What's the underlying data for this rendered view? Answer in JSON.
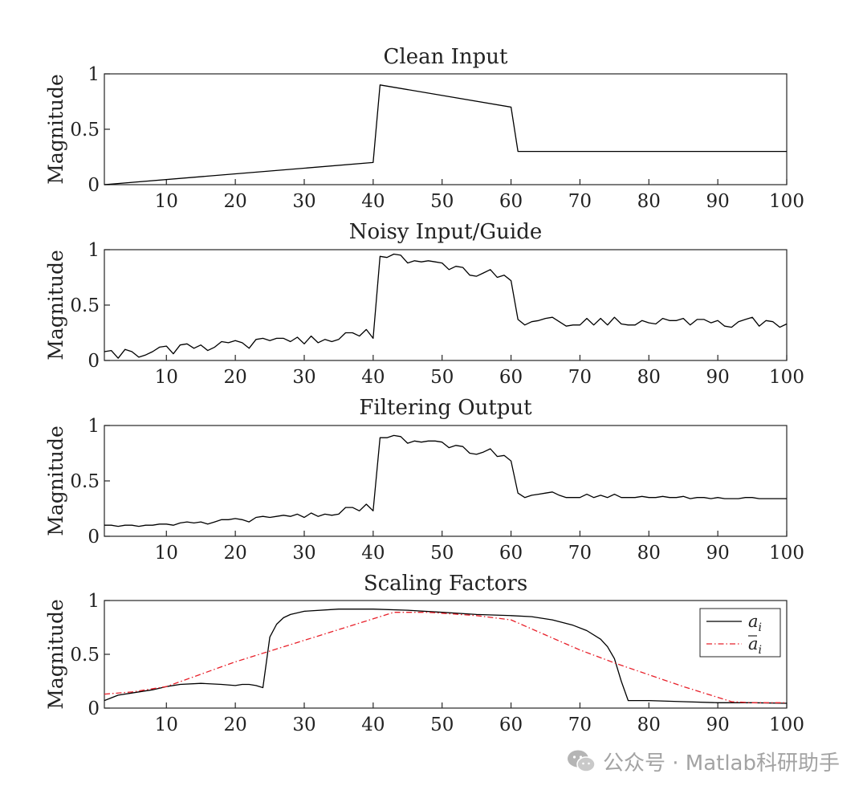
{
  "figure": {
    "watermark": "公众号 · Matlab科研助手"
  },
  "colors": {
    "axes": "#262626",
    "series_primary": "#000000",
    "series_secondary": "#e8202a",
    "watermark": "#a3a3a3"
  },
  "chart_data": [
    {
      "type": "line",
      "title": "Clean Input",
      "xlabel": "",
      "ylabel": "Magnitude",
      "xlim": [
        1,
        100
      ],
      "ylim": [
        0,
        1
      ],
      "xticks": [
        10,
        20,
        30,
        40,
        50,
        60,
        70,
        80,
        90,
        100
      ],
      "yticks": [
        0,
        0.5,
        1
      ],
      "ytick_labels": [
        "0",
        "0.5",
        "1"
      ],
      "grid": false,
      "series": [
        {
          "name": "clean input",
          "x": [
            1,
            40,
            41,
            60,
            61,
            100
          ],
          "y": [
            0.0,
            0.2,
            0.9,
            0.7,
            0.3,
            0.3
          ]
        }
      ]
    },
    {
      "type": "line",
      "title": "Noisy Input/Guide",
      "xlabel": "",
      "ylabel": "Magnitude",
      "xlim": [
        1,
        100
      ],
      "ylim": [
        0,
        1
      ],
      "xticks": [
        10,
        20,
        30,
        40,
        50,
        60,
        70,
        80,
        90,
        100
      ],
      "yticks": [
        0,
        0.5,
        1
      ],
      "ytick_labels": [
        "0",
        "0.5",
        "1"
      ],
      "grid": false,
      "series": [
        {
          "name": "noisy input",
          "x": [
            1,
            2,
            3,
            4,
            5,
            6,
            7,
            8,
            9,
            10,
            11,
            12,
            13,
            14,
            15,
            16,
            17,
            18,
            19,
            20,
            21,
            22,
            23,
            24,
            25,
            26,
            27,
            28,
            29,
            30,
            31,
            32,
            33,
            34,
            35,
            36,
            37,
            38,
            39,
            40,
            41,
            42,
            43,
            44,
            45,
            46,
            47,
            48,
            49,
            50,
            51,
            52,
            53,
            54,
            55,
            56,
            57,
            58,
            59,
            60,
            61,
            62,
            63,
            64,
            65,
            66,
            67,
            68,
            69,
            70,
            71,
            72,
            73,
            74,
            75,
            76,
            77,
            78,
            79,
            80,
            81,
            82,
            83,
            84,
            85,
            86,
            87,
            88,
            89,
            90,
            91,
            92,
            93,
            94,
            95,
            96,
            97,
            98,
            99,
            100
          ],
          "y": [
            0.08,
            0.09,
            0.02,
            0.1,
            0.08,
            0.03,
            0.05,
            0.08,
            0.12,
            0.13,
            0.06,
            0.14,
            0.15,
            0.11,
            0.14,
            0.09,
            0.12,
            0.17,
            0.16,
            0.18,
            0.16,
            0.11,
            0.19,
            0.2,
            0.18,
            0.2,
            0.2,
            0.17,
            0.21,
            0.15,
            0.22,
            0.16,
            0.19,
            0.17,
            0.19,
            0.25,
            0.25,
            0.22,
            0.28,
            0.2,
            0.94,
            0.93,
            0.96,
            0.95,
            0.88,
            0.9,
            0.89,
            0.9,
            0.89,
            0.88,
            0.82,
            0.85,
            0.84,
            0.77,
            0.76,
            0.79,
            0.82,
            0.75,
            0.77,
            0.72,
            0.37,
            0.32,
            0.35,
            0.36,
            0.38,
            0.39,
            0.35,
            0.31,
            0.32,
            0.32,
            0.38,
            0.32,
            0.38,
            0.32,
            0.39,
            0.33,
            0.32,
            0.32,
            0.36,
            0.34,
            0.33,
            0.38,
            0.36,
            0.36,
            0.38,
            0.32,
            0.37,
            0.37,
            0.34,
            0.36,
            0.31,
            0.3,
            0.35,
            0.37,
            0.39,
            0.31,
            0.36,
            0.35,
            0.3,
            0.33
          ]
        }
      ]
    },
    {
      "type": "line",
      "title": "Filtering Output",
      "xlabel": "",
      "ylabel": "Magnitude",
      "xlim": [
        1,
        100
      ],
      "ylim": [
        0,
        1
      ],
      "xticks": [
        10,
        20,
        30,
        40,
        50,
        60,
        70,
        80,
        90,
        100
      ],
      "yticks": [
        0,
        0.5,
        1
      ],
      "ytick_labels": [
        "0",
        "0.5",
        "1"
      ],
      "grid": false,
      "series": [
        {
          "name": "filtering output",
          "x": [
            1,
            2,
            3,
            4,
            5,
            6,
            7,
            8,
            9,
            10,
            11,
            12,
            13,
            14,
            15,
            16,
            17,
            18,
            19,
            20,
            21,
            22,
            23,
            24,
            25,
            26,
            27,
            28,
            29,
            30,
            31,
            32,
            33,
            34,
            35,
            36,
            37,
            38,
            39,
            40,
            41,
            42,
            43,
            44,
            45,
            46,
            47,
            48,
            49,
            50,
            51,
            52,
            53,
            54,
            55,
            56,
            57,
            58,
            59,
            60,
            61,
            62,
            63,
            64,
            65,
            66,
            67,
            68,
            69,
            70,
            71,
            72,
            73,
            74,
            75,
            76,
            77,
            78,
            79,
            80,
            81,
            82,
            83,
            84,
            85,
            86,
            87,
            88,
            89,
            90,
            91,
            92,
            93,
            94,
            95,
            96,
            97,
            98,
            99,
            100
          ],
          "y": [
            0.1,
            0.1,
            0.09,
            0.1,
            0.1,
            0.09,
            0.1,
            0.1,
            0.11,
            0.11,
            0.1,
            0.12,
            0.13,
            0.12,
            0.13,
            0.11,
            0.13,
            0.15,
            0.15,
            0.16,
            0.15,
            0.13,
            0.17,
            0.18,
            0.17,
            0.18,
            0.19,
            0.18,
            0.2,
            0.17,
            0.21,
            0.18,
            0.2,
            0.19,
            0.2,
            0.26,
            0.26,
            0.23,
            0.29,
            0.23,
            0.89,
            0.89,
            0.91,
            0.9,
            0.84,
            0.86,
            0.85,
            0.86,
            0.86,
            0.85,
            0.8,
            0.82,
            0.81,
            0.75,
            0.74,
            0.76,
            0.79,
            0.72,
            0.73,
            0.68,
            0.39,
            0.35,
            0.37,
            0.38,
            0.39,
            0.4,
            0.37,
            0.35,
            0.35,
            0.35,
            0.38,
            0.35,
            0.37,
            0.35,
            0.38,
            0.35,
            0.35,
            0.35,
            0.36,
            0.35,
            0.35,
            0.36,
            0.35,
            0.35,
            0.36,
            0.34,
            0.35,
            0.35,
            0.34,
            0.35,
            0.34,
            0.34,
            0.34,
            0.35,
            0.35,
            0.34,
            0.34,
            0.34,
            0.34,
            0.34
          ]
        }
      ]
    },
    {
      "type": "line",
      "title": "Scaling Factors",
      "xlabel": "",
      "ylabel": "Magnitude",
      "xlim": [
        1,
        100
      ],
      "ylim": [
        0,
        1
      ],
      "xticks": [
        10,
        20,
        30,
        40,
        50,
        60,
        70,
        80,
        90,
        100
      ],
      "yticks": [
        0,
        0.5,
        1
      ],
      "ytick_labels": [
        "0",
        "0.5",
        "1"
      ],
      "grid": false,
      "legend": "top-right",
      "series": [
        {
          "name": "a_i",
          "label_base": "a",
          "label_sub": "i",
          "label_bar": false,
          "style": "solid",
          "x": [
            1,
            3,
            5,
            8,
            10,
            12,
            15,
            18,
            20,
            21,
            22,
            23,
            24,
            25,
            26,
            27,
            28,
            30,
            35,
            40,
            45,
            50,
            55,
            60,
            63,
            66,
            69,
            71,
            73,
            74,
            75,
            76,
            77,
            80,
            85,
            90,
            95,
            100
          ],
          "y": [
            0.07,
            0.12,
            0.14,
            0.17,
            0.2,
            0.22,
            0.23,
            0.22,
            0.21,
            0.22,
            0.22,
            0.21,
            0.19,
            0.66,
            0.78,
            0.84,
            0.87,
            0.9,
            0.92,
            0.92,
            0.91,
            0.89,
            0.87,
            0.86,
            0.85,
            0.82,
            0.77,
            0.72,
            0.64,
            0.57,
            0.46,
            0.25,
            0.07,
            0.07,
            0.06,
            0.05,
            0.05,
            0.045
          ]
        },
        {
          "name": "a_bar_i",
          "label_base": "a",
          "label_sub": "i",
          "label_bar": true,
          "style": "dashdot",
          "x": [
            1,
            5,
            10,
            20,
            30,
            40,
            43,
            48,
            55,
            60,
            65,
            70,
            75,
            80,
            85,
            90,
            92,
            95,
            100
          ],
          "y": [
            0.13,
            0.15,
            0.2,
            0.43,
            0.63,
            0.83,
            0.89,
            0.89,
            0.86,
            0.82,
            0.68,
            0.54,
            0.42,
            0.31,
            0.2,
            0.1,
            0.06,
            0.05,
            0.05
          ]
        }
      ]
    }
  ]
}
